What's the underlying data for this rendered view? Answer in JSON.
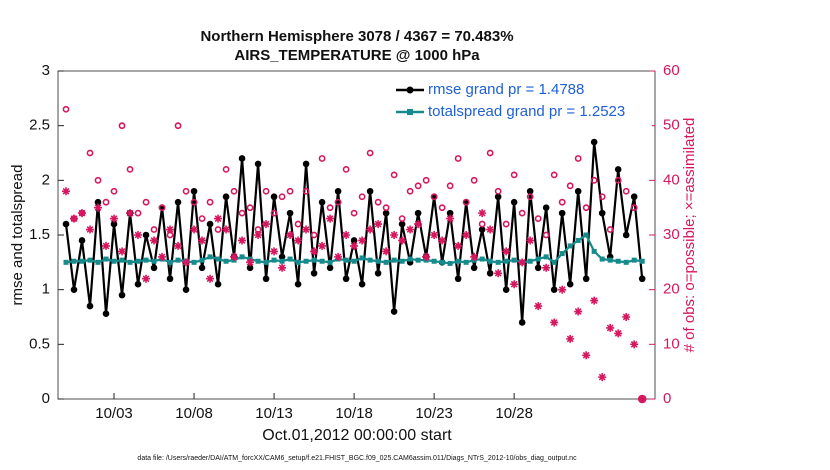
{
  "chart_data": {
    "type": "line",
    "title": [
      "Northern Hemisphere 3078 / 4367 = 70.483%",
      "AIRS_TEMPERATURE @ 1000 hPa"
    ],
    "xlabel": "Oct.01,2012 00:00:00 start",
    "ylabel": "rmse and totalspread",
    "y2label": "# of obs: o=possible; ×=assimilated",
    "footnote": "data file: /Users/raeder/DAI/ATM_forcXX/CAM6_setup/f.e21.FHIST_BGC.f09_025.CAM6assim.011/Diags_NTrS_2012-10/obs_diag_output.nc",
    "xlim": [
      -0.5,
      36.8
    ],
    "xticks": [
      {
        "value": 3,
        "label": "10/03"
      },
      {
        "value": 8,
        "label": "10/08"
      },
      {
        "value": 13,
        "label": "10/13"
      },
      {
        "value": 18,
        "label": "10/18"
      },
      {
        "value": 23,
        "label": "10/23"
      },
      {
        "value": 28,
        "label": "10/28"
      }
    ],
    "ylim": [
      0,
      3
    ],
    "yticks": [
      0,
      0.5,
      1,
      1.5,
      2,
      2.5,
      3
    ],
    "y2lim": [
      0,
      60
    ],
    "y2ticks": [
      0,
      10,
      20,
      30,
      40,
      50,
      60
    ],
    "y2color": "#d6175f",
    "legend": "upper right",
    "x": [
      0,
      0.5,
      1,
      1.5,
      2,
      2.5,
      3,
      3.5,
      4,
      4.5,
      5,
      5.5,
      6,
      6.5,
      7,
      7.5,
      8,
      8.5,
      9,
      9.5,
      10,
      10.5,
      11,
      11.5,
      12,
      12.5,
      13,
      13.5,
      14,
      14.5,
      15,
      15.5,
      16,
      16.5,
      17,
      17.5,
      18,
      18.5,
      19,
      19.5,
      20,
      20.5,
      21,
      21.5,
      22,
      22.5,
      23,
      23.5,
      24,
      24.5,
      25,
      25.5,
      26,
      26.5,
      27,
      27.5,
      28,
      28.5,
      29,
      29.5,
      30,
      30.5,
      31,
      31.5,
      32,
      32.5,
      33,
      33.5,
      34,
      34.5,
      35,
      35.5,
      36
    ],
    "series": [
      {
        "name": "rmse grand pr = 1.4788",
        "color": "#000000",
        "marker": "dot",
        "values": [
          1.6,
          1.0,
          1.45,
          0.85,
          1.8,
          0.78,
          1.6,
          0.95,
          1.7,
          1.05,
          1.5,
          1.2,
          1.75,
          1.1,
          1.8,
          1.0,
          1.9,
          1.2,
          1.6,
          1.05,
          1.85,
          1.3,
          2.2,
          1.2,
          2.15,
          1.1,
          1.85,
          1.3,
          1.7,
          1.05,
          2.15,
          1.15,
          1.8,
          1.2,
          1.9,
          1.1,
          1.45,
          1.05,
          1.9,
          1.15,
          1.7,
          0.8,
          1.6,
          1.25,
          1.7,
          1.3,
          1.85,
          1.25,
          1.7,
          1.1,
          1.8,
          1.2,
          1.55,
          1.15,
          1.85,
          1.0,
          1.8,
          0.7,
          1.9,
          1.2,
          1.75,
          1.0,
          1.7,
          1.05,
          1.9,
          1.1,
          2.35,
          1.7,
          1.3,
          2.1,
          1.5,
          1.85,
          1.1
        ]
      },
      {
        "name": "totalspread grand pr = 1.2523",
        "color": "#178a8c",
        "marker": "square",
        "values": [
          1.25,
          1.26,
          1.26,
          1.27,
          1.25,
          1.28,
          1.26,
          1.27,
          1.25,
          1.26,
          1.27,
          1.26,
          1.28,
          1.25,
          1.27,
          1.26,
          1.25,
          1.27,
          1.3,
          1.28,
          1.26,
          1.27,
          1.3,
          1.28,
          1.26,
          1.25,
          1.27,
          1.26,
          1.28,
          1.25,
          1.26,
          1.27,
          1.26,
          1.25,
          1.28,
          1.27,
          1.26,
          1.29,
          1.27,
          1.26,
          1.25,
          1.27,
          1.26,
          1.28,
          1.27,
          1.27,
          1.26,
          1.25,
          1.24,
          1.26,
          1.25,
          1.27,
          1.28,
          1.26,
          1.25,
          1.26,
          1.27,
          1.25,
          1.26,
          1.28,
          1.3,
          1.25,
          1.33,
          1.4,
          1.45,
          1.5,
          1.35,
          1.28,
          1.27,
          1.26,
          1.25,
          1.27,
          1.26
        ]
      },
      {
        "color": "#d6175f",
        "marker": "o",
        "axis": "y2",
        "values": [
          53,
          33,
          34,
          45,
          40,
          36,
          38,
          50,
          42,
          34,
          36,
          31,
          35,
          30,
          50,
          38,
          36,
          33,
          36,
          31,
          42,
          38,
          34,
          35,
          31,
          38,
          34,
          37,
          38,
          32,
          38,
          30,
          44,
          35,
          36,
          42,
          34,
          37,
          45,
          36,
          35,
          41,
          33,
          38,
          39,
          40,
          37,
          35,
          39,
          44,
          36,
          40,
          32,
          45,
          38,
          32,
          41,
          34,
          37,
          33,
          30,
          41,
          36,
          39,
          44,
          35,
          40,
          37,
          31,
          40,
          38,
          35,
          0
        ]
      },
      {
        "color": "#d6175f",
        "marker": "*",
        "axis": "y2",
        "values": [
          38,
          33,
          34,
          31,
          35,
          28,
          33,
          27,
          34,
          30,
          22,
          29,
          26,
          31,
          28,
          25,
          31,
          29,
          22,
          33,
          31,
          26,
          29,
          25,
          30,
          32,
          27,
          24,
          30,
          29,
          31,
          27,
          28,
          33,
          26,
          30,
          28,
          29,
          31,
          32,
          27,
          30,
          29,
          31,
          32,
          26,
          30,
          29,
          33,
          28,
          30,
          26,
          34,
          31,
          23,
          27,
          21,
          25,
          29,
          17,
          24,
          14,
          20,
          11,
          16,
          8,
          18,
          4,
          13,
          12,
          15,
          10,
          0
        ]
      }
    ]
  }
}
